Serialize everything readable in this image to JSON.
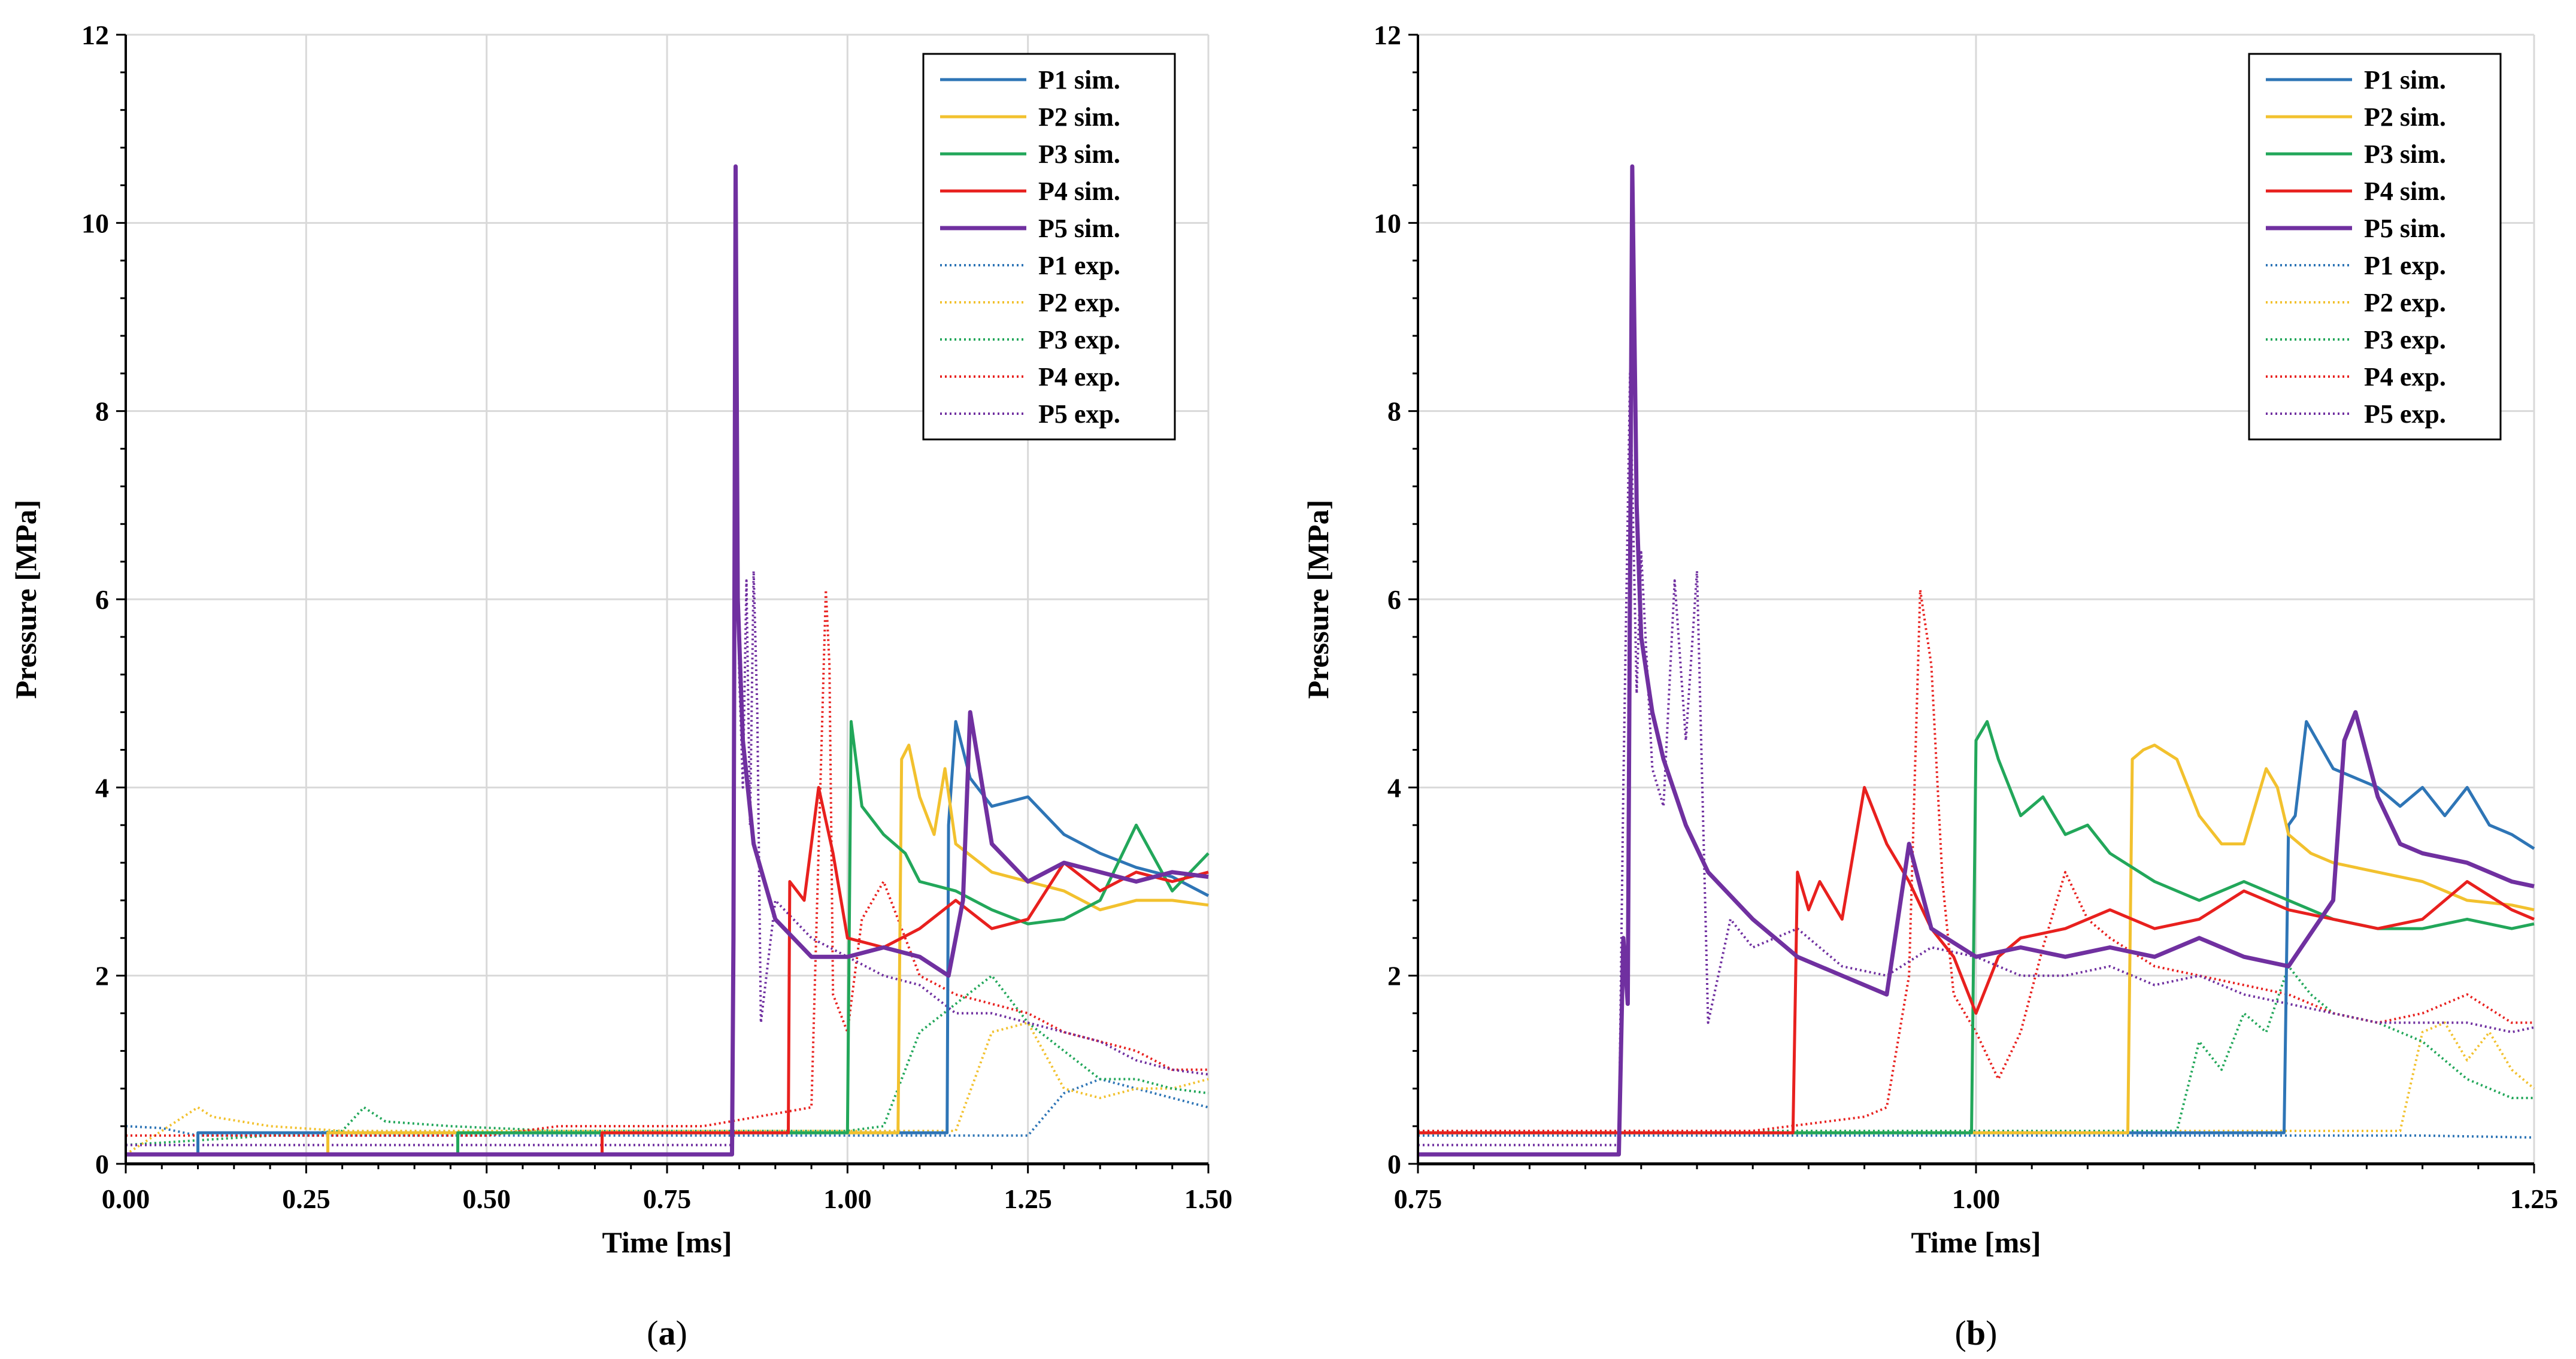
{
  "colors": {
    "P1": "#2E75B6",
    "P2": "#F2C12E",
    "P3": "#22A75A",
    "P4": "#E8201E",
    "P5": "#7030A0",
    "grid": "#d9d9d9",
    "axis": "#000000"
  },
  "chart_data": [
    {
      "type": "line",
      "panel_label": "(a)",
      "panel_letter": "a",
      "xlabel": "Time [ms]",
      "ylabel": "Pressure [MPa]",
      "xlim": [
        0.0,
        1.5
      ],
      "ylim": [
        0,
        12
      ],
      "x_tick_values": [
        0.0,
        0.25,
        0.5,
        0.75,
        1.0,
        1.25,
        1.5
      ],
      "x_tick_labels": [
        "0.00",
        "0.25",
        "0.50",
        "0.75",
        "1.00",
        "1.25",
        "1.50"
      ],
      "y_tick_values": [
        0,
        2,
        4,
        6,
        8,
        10,
        12
      ],
      "y_tick_labels": [
        "0",
        "2",
        "4",
        "6",
        "8",
        "10",
        "12"
      ],
      "grid": true,
      "legend_position": "top-right",
      "series": [
        {
          "name": "P1 sim.",
          "key": "P1",
          "style": "solid",
          "x": [
            0.0,
            0.1,
            0.1,
            1.138,
            1.14,
            1.15,
            1.17,
            1.2,
            1.25,
            1.3,
            1.35,
            1.4,
            1.45,
            1.5
          ],
          "y": [
            0.1,
            0.1,
            0.33,
            0.33,
            3.6,
            4.7,
            4.1,
            3.8,
            3.9,
            3.5,
            3.3,
            3.15,
            3.05,
            2.85
          ]
        },
        {
          "name": "P2 sim.",
          "key": "P2",
          "style": "solid",
          "x": [
            0.0,
            0.28,
            0.28,
            1.07,
            1.075,
            1.085,
            1.1,
            1.12,
            1.135,
            1.15,
            1.2,
            1.25,
            1.3,
            1.35,
            1.4,
            1.45,
            1.5
          ],
          "y": [
            0.1,
            0.1,
            0.33,
            0.33,
            4.3,
            4.45,
            3.9,
            3.5,
            4.2,
            3.4,
            3.1,
            3.0,
            2.9,
            2.7,
            2.8,
            2.8,
            2.75
          ]
        },
        {
          "name": "P3 sim.",
          "key": "P3",
          "style": "solid",
          "x": [
            0.0,
            0.46,
            0.46,
            1.0,
            1.005,
            1.02,
            1.05,
            1.08,
            1.1,
            1.15,
            1.2,
            1.25,
            1.3,
            1.35,
            1.4,
            1.45,
            1.5
          ],
          "y": [
            0.1,
            0.1,
            0.33,
            0.33,
            4.7,
            3.8,
            3.5,
            3.3,
            3.0,
            2.9,
            2.7,
            2.55,
            2.6,
            2.8,
            3.6,
            2.9,
            3.3
          ]
        },
        {
          "name": "P4 sim.",
          "key": "P4",
          "style": "solid",
          "x": [
            0.0,
            0.66,
            0.66,
            0.918,
            0.92,
            0.94,
            0.96,
            0.98,
            1.0,
            1.05,
            1.1,
            1.15,
            1.2,
            1.25,
            1.3,
            1.35,
            1.4,
            1.45,
            1.5
          ],
          "y": [
            0.1,
            0.1,
            0.33,
            0.33,
            3.0,
            2.8,
            4.0,
            3.3,
            2.4,
            2.3,
            2.5,
            2.8,
            2.5,
            2.6,
            3.2,
            2.9,
            3.1,
            3.0,
            3.1
          ]
        },
        {
          "name": "P5 sim.",
          "key": "P5",
          "style": "solid",
          "x": [
            0.0,
            0.84,
            0.842,
            0.845,
            0.848,
            0.855,
            0.87,
            0.9,
            0.95,
            1.0,
            1.05,
            1.1,
            1.14,
            1.16,
            1.17,
            1.2,
            1.25,
            1.3,
            1.35,
            1.4,
            1.45,
            1.5
          ],
          "y": [
            0.1,
            0.1,
            2.4,
            10.6,
            6.0,
            4.5,
            3.4,
            2.6,
            2.2,
            2.2,
            2.3,
            2.2,
            2.0,
            2.8,
            4.8,
            3.4,
            3.0,
            3.2,
            3.1,
            3.0,
            3.1,
            3.05
          ]
        },
        {
          "name": "P1 exp.",
          "key": "P1",
          "style": "dotted",
          "x": [
            0.0,
            0.05,
            0.1,
            0.2,
            0.5,
            0.8,
            1.0,
            1.2,
            1.25,
            1.3,
            1.35,
            1.4,
            1.45,
            1.5
          ],
          "y": [
            0.4,
            0.38,
            0.3,
            0.3,
            0.3,
            0.3,
            0.3,
            0.3,
            0.3,
            0.75,
            0.9,
            0.8,
            0.7,
            0.6
          ]
        },
        {
          "name": "P2 exp.",
          "key": "P2",
          "style": "dotted",
          "x": [
            0.0,
            0.1,
            0.12,
            0.2,
            0.3,
            0.5,
            0.8,
            1.0,
            1.15,
            1.2,
            1.25,
            1.3,
            1.35,
            1.4,
            1.45,
            1.5
          ],
          "y": [
            0.1,
            0.6,
            0.5,
            0.4,
            0.35,
            0.35,
            0.35,
            0.35,
            0.35,
            1.4,
            1.5,
            0.8,
            0.7,
            0.8,
            0.8,
            0.9
          ]
        },
        {
          "name": "P3 exp.",
          "key": "P3",
          "style": "dotted",
          "x": [
            0.0,
            0.3,
            0.33,
            0.36,
            0.45,
            0.6,
            0.8,
            1.0,
            1.05,
            1.1,
            1.15,
            1.2,
            1.25,
            1.3,
            1.35,
            1.4,
            1.45,
            1.5
          ],
          "y": [
            0.2,
            0.35,
            0.6,
            0.45,
            0.4,
            0.35,
            0.35,
            0.35,
            0.4,
            1.4,
            1.7,
            2.0,
            1.5,
            1.2,
            0.9,
            0.9,
            0.8,
            0.75
          ]
        },
        {
          "name": "P4 exp.",
          "key": "P4",
          "style": "dotted",
          "x": [
            0.0,
            0.5,
            0.6,
            0.8,
            0.95,
            0.97,
            0.975,
            0.98,
            1.0,
            1.02,
            1.05,
            1.1,
            1.15,
            1.2,
            1.25,
            1.3,
            1.35,
            1.4,
            1.45,
            1.5
          ],
          "y": [
            0.3,
            0.3,
            0.4,
            0.4,
            0.6,
            6.1,
            5.3,
            1.8,
            1.4,
            2.6,
            3.0,
            2.0,
            1.8,
            1.7,
            1.6,
            1.4,
            1.3,
            1.2,
            1.0,
            1.0
          ]
        },
        {
          "name": "P5 exp.",
          "key": "P5",
          "style": "dotted",
          "x": [
            0.0,
            0.5,
            0.8,
            0.84,
            0.845,
            0.85,
            0.855,
            0.86,
            0.865,
            0.87,
            0.875,
            0.88,
            0.9,
            0.95,
            1.0,
            1.05,
            1.1,
            1.15,
            1.2,
            1.25,
            1.3,
            1.35,
            1.4,
            1.45,
            1.5
          ],
          "y": [
            0.2,
            0.2,
            0.2,
            0.2,
            8.4,
            5.2,
            4.0,
            6.2,
            3.6,
            6.3,
            4.8,
            1.5,
            2.8,
            2.4,
            2.2,
            2.0,
            1.9,
            1.6,
            1.6,
            1.5,
            1.4,
            1.3,
            1.1,
            1.0,
            0.95
          ]
        }
      ]
    },
    {
      "type": "line",
      "panel_label": "(b)",
      "panel_letter": "b",
      "xlabel": "Time [ms]",
      "ylabel": "Pressure [MPa]",
      "xlim": [
        0.75,
        1.25
      ],
      "ylim": [
        0,
        12
      ],
      "x_tick_values": [
        0.75,
        1.0,
        1.25
      ],
      "x_tick_labels": [
        "0.75",
        "1.00",
        "1.25"
      ],
      "y_tick_values": [
        0,
        2,
        4,
        6,
        8,
        10,
        12
      ],
      "y_tick_labels": [
        "0",
        "2",
        "4",
        "6",
        "8",
        "10",
        "12"
      ],
      "grid": true,
      "legend_position": "top-right",
      "series": [
        {
          "name": "P1 sim.",
          "key": "P1",
          "style": "solid",
          "x": [
            0.75,
            1.138,
            1.14,
            1.143,
            1.148,
            1.16,
            1.17,
            1.18,
            1.19,
            1.2,
            1.21,
            1.22,
            1.23,
            1.24,
            1.25
          ],
          "y": [
            0.33,
            0.33,
            3.6,
            3.7,
            4.7,
            4.2,
            4.1,
            4.0,
            3.8,
            4.0,
            3.7,
            4.0,
            3.6,
            3.5,
            3.35
          ]
        },
        {
          "name": "P2 sim.",
          "key": "P2",
          "style": "solid",
          "x": [
            0.75,
            1.068,
            1.07,
            1.075,
            1.08,
            1.09,
            1.1,
            1.11,
            1.12,
            1.13,
            1.135,
            1.14,
            1.15,
            1.16,
            1.18,
            1.2,
            1.22,
            1.24,
            1.25
          ],
          "y": [
            0.33,
            0.33,
            4.3,
            4.4,
            4.45,
            4.3,
            3.7,
            3.4,
            3.4,
            4.2,
            4.0,
            3.5,
            3.3,
            3.2,
            3.1,
            3.0,
            2.8,
            2.75,
            2.7
          ]
        },
        {
          "name": "P3 sim.",
          "key": "P3",
          "style": "solid",
          "x": [
            0.75,
            0.998,
            1.0,
            1.005,
            1.01,
            1.02,
            1.03,
            1.04,
            1.05,
            1.06,
            1.08,
            1.1,
            1.12,
            1.14,
            1.16,
            1.18,
            1.2,
            1.22,
            1.24,
            1.25
          ],
          "y": [
            0.33,
            0.33,
            4.5,
            4.7,
            4.3,
            3.7,
            3.9,
            3.5,
            3.6,
            3.3,
            3.0,
            2.8,
            3.0,
            2.8,
            2.6,
            2.5,
            2.5,
            2.6,
            2.5,
            2.55
          ]
        },
        {
          "name": "P4 sim.",
          "key": "P4",
          "style": "solid",
          "x": [
            0.75,
            0.918,
            0.92,
            0.925,
            0.93,
            0.94,
            0.95,
            0.96,
            0.97,
            0.98,
            0.99,
            1.0,
            1.01,
            1.02,
            1.04,
            1.06,
            1.08,
            1.1,
            1.12,
            1.14,
            1.16,
            1.18,
            1.2,
            1.22,
            1.24,
            1.25
          ],
          "y": [
            0.33,
            0.33,
            3.1,
            2.7,
            3.0,
            2.6,
            4.0,
            3.4,
            3.0,
            2.5,
            2.2,
            1.6,
            2.2,
            2.4,
            2.5,
            2.7,
            2.5,
            2.6,
            2.9,
            2.7,
            2.6,
            2.5,
            2.6,
            3.0,
            2.7,
            2.6
          ]
        },
        {
          "name": "P5 sim.",
          "key": "P5",
          "style": "solid",
          "x": [
            0.75,
            0.84,
            0.842,
            0.844,
            0.846,
            0.848,
            0.85,
            0.855,
            0.86,
            0.87,
            0.88,
            0.9,
            0.92,
            0.94,
            0.96,
            0.97,
            0.98,
            1.0,
            1.02,
            1.04,
            1.06,
            1.08,
            1.1,
            1.12,
            1.14,
            1.16,
            1.165,
            1.17,
            1.18,
            1.19,
            1.2,
            1.22,
            1.24,
            1.25
          ],
          "y": [
            0.1,
            0.1,
            2.4,
            1.7,
            10.6,
            7.0,
            5.6,
            4.8,
            4.3,
            3.6,
            3.1,
            2.6,
            2.2,
            2.0,
            1.8,
            3.4,
            2.5,
            2.2,
            2.3,
            2.2,
            2.3,
            2.2,
            2.4,
            2.2,
            2.1,
            2.8,
            4.5,
            4.8,
            3.9,
            3.4,
            3.3,
            3.2,
            3.0,
            2.95
          ]
        },
        {
          "name": "P1 exp.",
          "key": "P1",
          "style": "dotted",
          "x": [
            0.75,
            0.85,
            0.95,
            1.05,
            1.15,
            1.2,
            1.25
          ],
          "y": [
            0.3,
            0.3,
            0.3,
            0.3,
            0.3,
            0.3,
            0.28
          ]
        },
        {
          "name": "P2 exp.",
          "key": "P2",
          "style": "dotted",
          "x": [
            0.75,
            0.85,
            0.95,
            1.05,
            1.15,
            1.19,
            1.2,
            1.21,
            1.22,
            1.23,
            1.24,
            1.25
          ],
          "y": [
            0.35,
            0.35,
            0.35,
            0.35,
            0.35,
            0.35,
            1.4,
            1.5,
            1.1,
            1.4,
            1.0,
            0.8
          ]
        },
        {
          "name": "P3 exp.",
          "key": "P3",
          "style": "dotted",
          "x": [
            0.75,
            0.9,
            1.0,
            1.09,
            1.1,
            1.11,
            1.12,
            1.13,
            1.14,
            1.15,
            1.16,
            1.18,
            1.2,
            1.22,
            1.24,
            1.25
          ],
          "y": [
            0.35,
            0.35,
            0.35,
            0.35,
            1.3,
            1.0,
            1.6,
            1.4,
            2.1,
            1.8,
            1.6,
            1.5,
            1.3,
            0.9,
            0.7,
            0.7
          ]
        },
        {
          "name": "P4 exp.",
          "key": "P4",
          "style": "dotted",
          "x": [
            0.75,
            0.9,
            0.95,
            0.96,
            0.97,
            0.975,
            0.98,
            0.985,
            0.99,
            1.0,
            1.01,
            1.02,
            1.03,
            1.04,
            1.05,
            1.06,
            1.08,
            1.1,
            1.12,
            1.14,
            1.16,
            1.18,
            1.2,
            1.22,
            1.24,
            1.25
          ],
          "y": [
            0.35,
            0.35,
            0.5,
            0.6,
            2.0,
            6.1,
            5.3,
            3.0,
            1.8,
            1.4,
            0.9,
            1.4,
            2.3,
            3.1,
            2.6,
            2.4,
            2.1,
            2.0,
            1.9,
            1.8,
            1.6,
            1.5,
            1.6,
            1.8,
            1.5,
            1.5
          ]
        },
        {
          "name": "P5 exp.",
          "key": "P5",
          "style": "dotted",
          "x": [
            0.75,
            0.82,
            0.84,
            0.842,
            0.845,
            0.848,
            0.85,
            0.855,
            0.86,
            0.865,
            0.87,
            0.875,
            0.88,
            0.89,
            0.9,
            0.92,
            0.94,
            0.96,
            0.98,
            1.0,
            1.02,
            1.04,
            1.06,
            1.08,
            1.1,
            1.12,
            1.14,
            1.16,
            1.18,
            1.2,
            1.22,
            1.24,
            1.25
          ],
          "y": [
            0.2,
            0.2,
            0.2,
            4.0,
            8.4,
            5.0,
            6.5,
            4.2,
            3.8,
            6.2,
            4.5,
            6.3,
            1.5,
            2.6,
            2.3,
            2.5,
            2.1,
            2.0,
            2.3,
            2.2,
            2.0,
            2.0,
            2.1,
            1.9,
            2.0,
            1.8,
            1.7,
            1.6,
            1.5,
            1.5,
            1.5,
            1.4,
            1.45
          ]
        }
      ]
    }
  ]
}
